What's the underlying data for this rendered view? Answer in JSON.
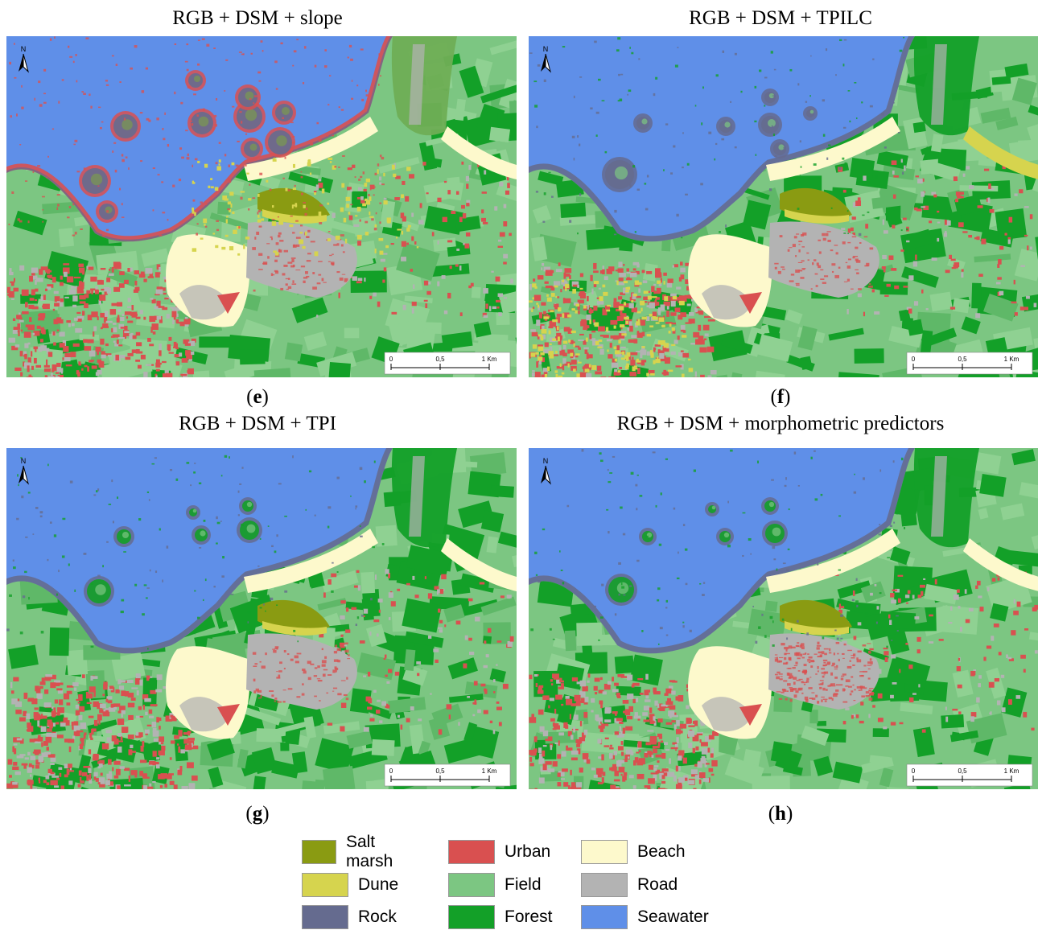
{
  "panels": [
    {
      "title": "RGB + DSM + slope",
      "letter": "e",
      "variant": "slope"
    },
    {
      "title": "RGB + DSM + TPILC",
      "letter": "f",
      "variant": "tpilc"
    },
    {
      "title": "RGB + DSM + TPI",
      "letter": "g",
      "variant": "tpi"
    },
    {
      "title": "RGB + DSM + morphometric predictors",
      "letter": "h",
      "variant": "morph"
    }
  ],
  "map": {
    "north_label": "N",
    "scalebar": {
      "start": "0",
      "mid": "0,5",
      "end": "1 Km"
    }
  },
  "legend": [
    {
      "label": "Salt marsh",
      "color": "#8a9b12"
    },
    {
      "label": "Urban",
      "color": "#d95050"
    },
    {
      "label": "Beach",
      "color": "#fdf9cc"
    },
    {
      "label": "Dune",
      "color": "#d6d44e"
    },
    {
      "label": "Field",
      "color": "#7cc682"
    },
    {
      "label": "Road",
      "color": "#b3b3b3"
    },
    {
      "label": "Rock",
      "color": "#656b8f"
    },
    {
      "label": "Forest",
      "color": "#13a028"
    },
    {
      "label": "Seawater",
      "color": "#5f8fe8"
    }
  ]
}
